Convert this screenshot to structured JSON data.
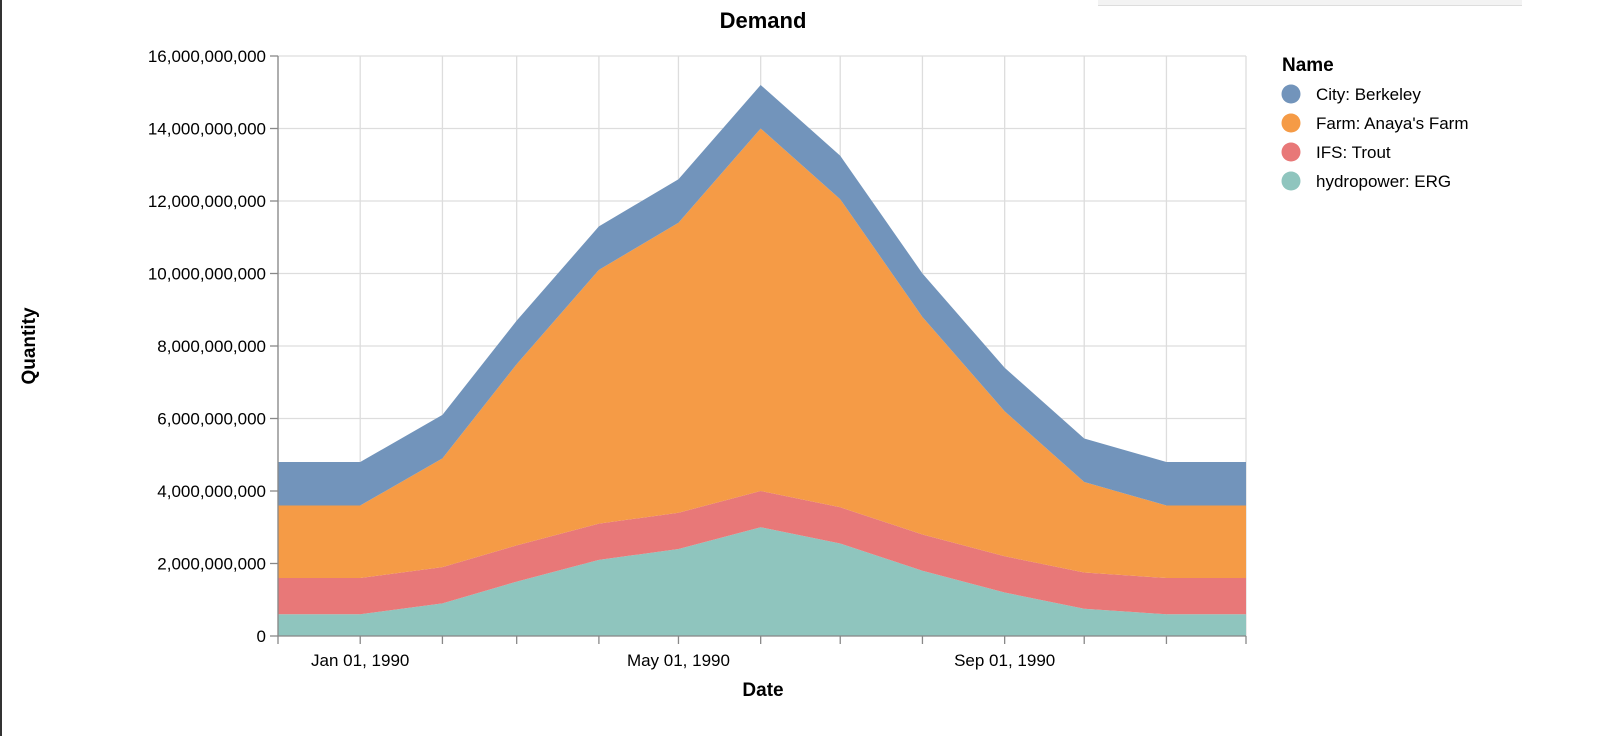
{
  "chart_data": {
    "type": "area",
    "stacked": true,
    "title": "Demand",
    "xlabel": "Date",
    "ylabel": "Quantity",
    "ylim": [
      0,
      16000000000
    ],
    "y_ticks": [
      0,
      2000000000,
      4000000000,
      6000000000,
      8000000000,
      10000000000,
      12000000000,
      14000000000,
      16000000000
    ],
    "x_tick_labels": [
      {
        "date": "1990-01-01",
        "label": "Jan 01, 1990"
      },
      {
        "date": "1990-05-01",
        "label": "May 01, 1990"
      },
      {
        "date": "1990-09-01",
        "label": "Sep 01, 1990"
      }
    ],
    "grid": true,
    "legend_title": "Name",
    "legend_position": "right",
    "x": [
      "1989-12-01",
      "1990-01-01",
      "1990-02-01",
      "1990-03-01",
      "1990-04-01",
      "1990-05-01",
      "1990-06-01",
      "1990-07-01",
      "1990-08-01",
      "1990-09-01",
      "1990-10-01",
      "1990-11-01",
      "1990-12-01"
    ],
    "series": [
      {
        "name": "hydropower: ERG",
        "color": "#8fc5be",
        "values": [
          600000000,
          600000000,
          900000000,
          1500000000,
          2100000000,
          2400000000,
          3000000000,
          2550000000,
          1800000000,
          1200000000,
          750000000,
          600000000,
          600000000
        ]
      },
      {
        "name": "IFS: Trout",
        "color": "#e87878",
        "values": [
          1000000000,
          1000000000,
          1000000000,
          1000000000,
          1000000000,
          1000000000,
          1000000000,
          1000000000,
          1000000000,
          1000000000,
          1000000000,
          1000000000,
          1000000000
        ]
      },
      {
        "name": "Farm: Anaya's Farm",
        "color": "#f59b46",
        "values": [
          2000000000,
          2000000000,
          3000000000,
          5000000000,
          7000000000,
          8000000000,
          10000000000,
          8500000000,
          6000000000,
          4000000000,
          2500000000,
          2000000000,
          2000000000
        ]
      },
      {
        "name": "City: Berkeley",
        "color": "#7294bb",
        "values": [
          1200000000,
          1200000000,
          1200000000,
          1200000000,
          1200000000,
          1200000000,
          1200000000,
          1200000000,
          1200000000,
          1200000000,
          1200000000,
          1200000000,
          1200000000
        ]
      }
    ]
  }
}
